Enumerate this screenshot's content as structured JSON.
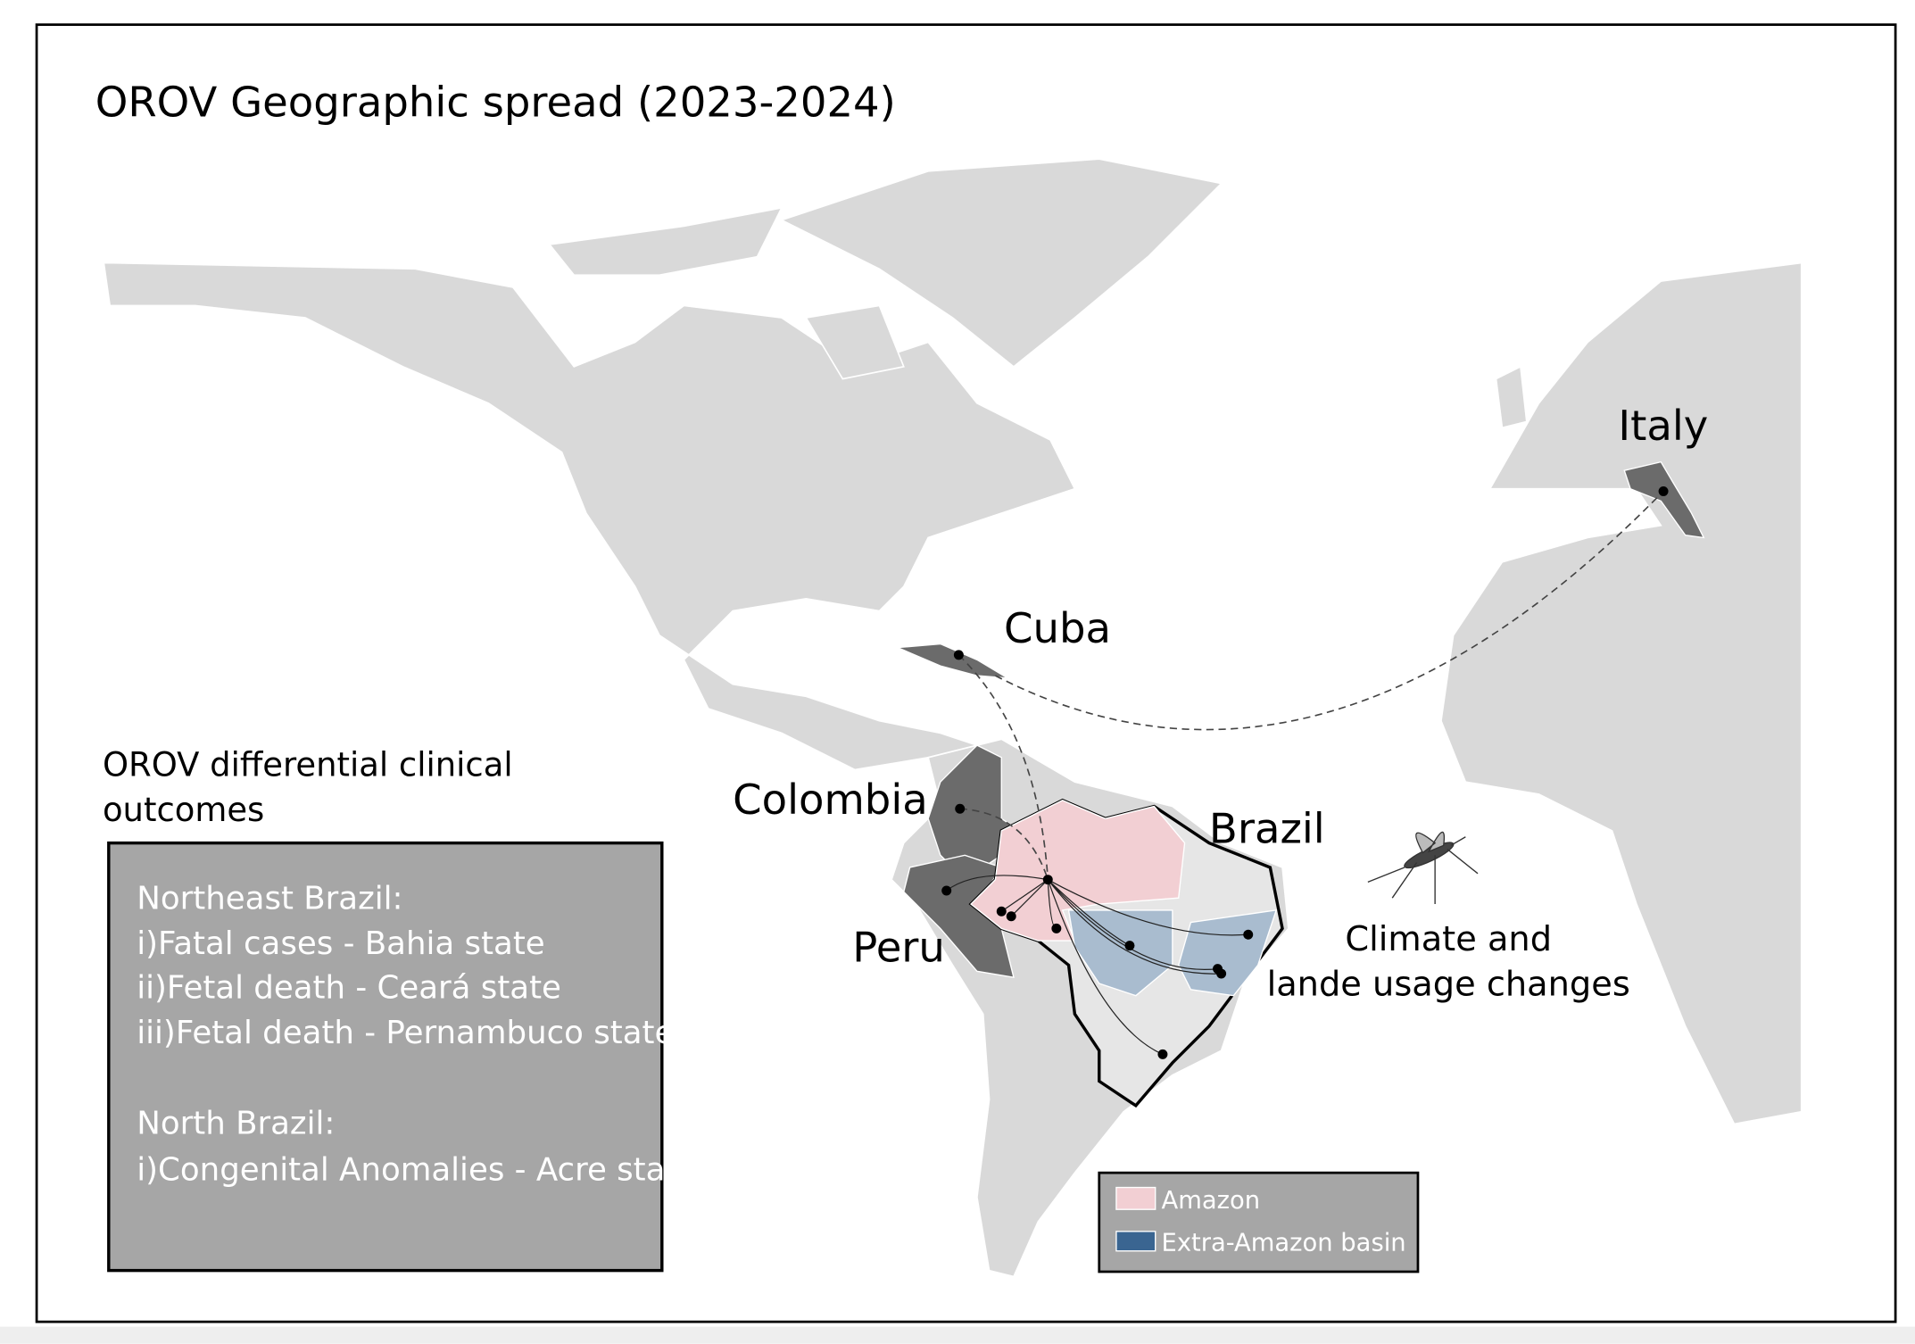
{
  "title": "OROV Geographic spread (2023-2024)",
  "countries": [
    "Italy",
    "Cuba",
    "Colombia",
    "Brazil",
    "Peru"
  ],
  "climate_note": [
    "Climate and",
    "lande usage changes"
  ],
  "outcomes": {
    "heading": [
      "OROV differential clinical",
      "outcomes"
    ],
    "lines": [
      "Northeast Brazil:",
      "i)Fatal cases - Bahia state",
      "ii)Fetal death - Ceará  state",
      "iii)Fetal death - Pernambuco state",
      "North Brazil:",
      "i)Congenital Anomalies - Acre state"
    ]
  },
  "legend": [
    {
      "name": "Amazon",
      "color": "#f2cfd3"
    },
    {
      "name": "Extra-Amazon basin",
      "color": "#3a6591"
    }
  ]
}
